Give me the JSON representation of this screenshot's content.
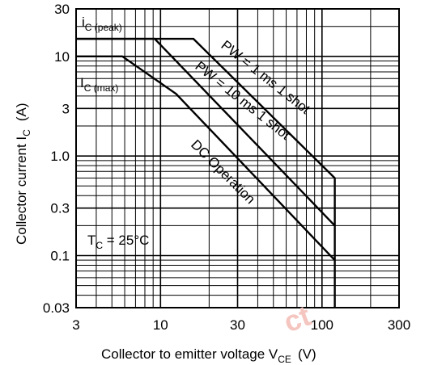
{
  "chart_data": {
    "type": "line",
    "x_scale": "log",
    "y_scale": "log",
    "xlim": [
      3,
      300
    ],
    "ylim": [
      0.03,
      30
    ],
    "grid": true,
    "x_ticks": [
      3,
      10,
      30,
      100,
      300
    ],
    "x_tick_labels": [
      "3",
      "10",
      "30",
      "100",
      "300"
    ],
    "y_ticks": [
      30,
      10,
      3,
      1.0,
      0.3,
      0.1,
      0.03
    ],
    "y_tick_labels": [
      "30",
      "10",
      "3",
      "1.0",
      "0.3",
      "0.1",
      "0.03"
    ],
    "xlabel": {
      "main": "Collector to emitter voltage  V",
      "sub": "CE",
      "unit": "(V)"
    },
    "ylabel": {
      "main": "Collector current  I",
      "sub": "C",
      "unit": "(A)"
    },
    "series": [
      {
        "name": "PW = 1 ms 1 shot",
        "x": [
          3,
          16,
          120,
          120
        ],
        "y": [
          15,
          15,
          0.6,
          0.03
        ]
      },
      {
        "name": "PW = 10 ms 1 shot",
        "x": [
          3,
          9.2,
          120
        ],
        "y": [
          15,
          15,
          0.2
        ]
      },
      {
        "name": "DC Operation",
        "x": [
          3,
          5.8,
          12.5,
          120
        ],
        "y": [
          10,
          10,
          4.2,
          0.09
        ]
      }
    ],
    "annotations": {
      "ic_peak": {
        "main": "i",
        "sub": "C (peak)"
      },
      "ic_max": {
        "main": "I",
        "sub": "C (max)"
      },
      "tc": {
        "main": "T",
        "sub": "C",
        "rest": " = 25°C"
      }
    },
    "watermark": "ct"
  }
}
